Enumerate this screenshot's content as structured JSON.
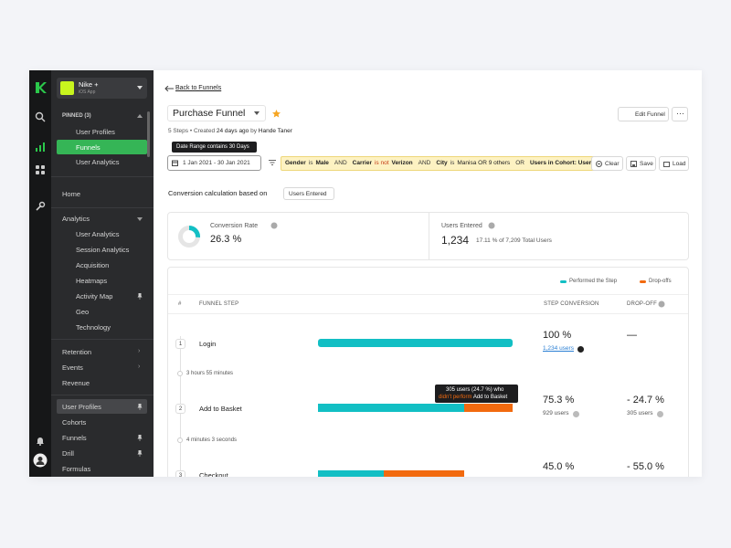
{
  "app": {
    "name": "Nike +",
    "platform": "iOS App"
  },
  "sidebar": {
    "pinned_title": "PINNED (3)",
    "pinned": [
      "User Profiles",
      "Funnels",
      "User Analytics"
    ],
    "home": "Home",
    "analytics_title": "Analytics",
    "analytics": [
      "User Analytics",
      "Session Analytics",
      "Acquisition",
      "Heatmaps",
      "Activity Map",
      "Geo",
      "Technology"
    ],
    "sections": [
      "Retention",
      "Events",
      "Revenue"
    ],
    "bottom": [
      "User Profiles",
      "Cohorts",
      "Funnels",
      "Drill",
      "Formulas"
    ]
  },
  "header": {
    "back": "Back to Funnels",
    "title": "Purchase Funnel",
    "steps": "5 Steps",
    "created": "Created",
    "ago": "24 days ago",
    "by": "by",
    "author": "Hande Taner",
    "edit": "Edit Funnel"
  },
  "date_tooltip": "Date Range contains 30 Days",
  "date_range": "1 Jan 2021 - 30 Jan 2021",
  "filters": {
    "conditions": [
      {
        "field": "Gender",
        "op": "is",
        "value": "Male"
      },
      {
        "field": "Carrier",
        "op": "is not",
        "value": "Verizon"
      },
      {
        "field": "City",
        "op": "is",
        "value": "Manisa OR 9 others"
      },
      {
        "field": "Users in Cohort: Users.."
      }
    ],
    "joins": [
      "AND",
      "AND",
      "OR"
    ]
  },
  "actions": {
    "clear": "Clear",
    "save": "Save",
    "load": "Load"
  },
  "basis": {
    "label": "Conversion calculation based on",
    "value": "Users Entered"
  },
  "kpis": {
    "conversion_rate": {
      "label": "Conversion Rate",
      "value": 26.3,
      "value_label": "26.3 %"
    },
    "users_entered": {
      "label": "Users Entered",
      "value": "1,234",
      "detail": "17.11 % of 7,209 Total Users"
    }
  },
  "legend": {
    "performed": "Performed the Step",
    "dropoffs": "Drop-offs",
    "performed_color": "#12bfc4",
    "dropoff_color": "#f26a0f"
  },
  "table": {
    "headers": {
      "index": "#",
      "step": "FUNNEL STEP",
      "conversion": "STEP CONVERSION",
      "dropoff": "DROP-OFF"
    },
    "steps": [
      {
        "index": 1,
        "name": "Login",
        "conversion": 100,
        "conversion_label": "100 %",
        "users": "1,234 users",
        "dropoff": null,
        "dropoff_label": "—"
      },
      {
        "index": 2,
        "name": "Add to Basket",
        "conversion": 75.3,
        "conversion_label": "75.3 %",
        "users": "929 users",
        "dropoff": -24.7,
        "dropoff_label": "- 24.7 %",
        "dropoff_users": "305 users"
      },
      {
        "index": 3,
        "name": "Checkout",
        "conversion": 45.0,
        "conversion_label": "45.0 %",
        "dropoff": -55.0,
        "dropoff_label": "- 55.0 %"
      }
    ],
    "gaps": [
      "3 hours 55 minutes",
      "4 minutes 3 seconds"
    ]
  },
  "bar_tooltip": {
    "line1": "305 users (24.7 %) who",
    "highlight": "didn't perform",
    "rest": "Add to Basket"
  }
}
